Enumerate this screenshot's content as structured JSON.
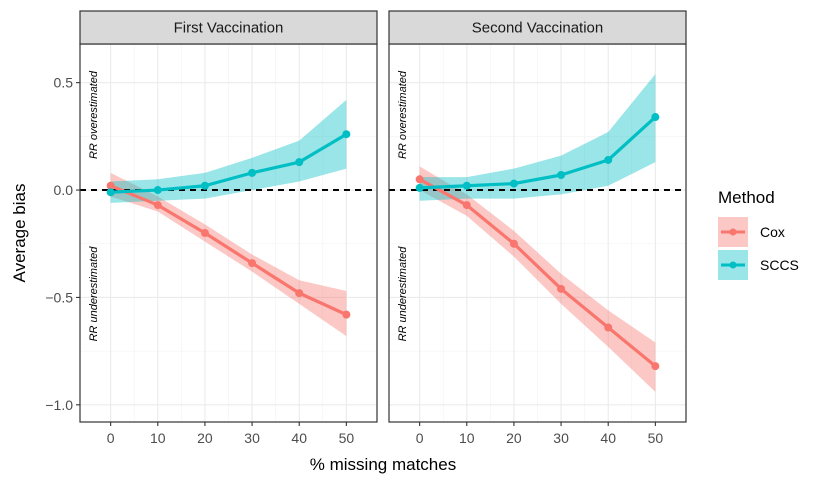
{
  "chart_data": {
    "type": "line",
    "xlabel": "% missing matches",
    "ylabel": "Average bias",
    "xlim": [
      -6.5,
      56.5
    ],
    "ylim": [
      -1.08,
      0.68
    ],
    "x_ticks": [
      0,
      10,
      20,
      30,
      40,
      50
    ],
    "x_tick_labels": [
      "0",
      "10",
      "20",
      "30",
      "40",
      "50"
    ],
    "y_ticks": [
      0.5,
      0.0,
      -0.5,
      -1.0
    ],
    "y_tick_labels": [
      "0.5",
      "0.0",
      "−0.5",
      "−1.0"
    ],
    "reference_line": {
      "y": 0,
      "style": "dashed",
      "color": "#000000"
    },
    "legend": {
      "title": "Method",
      "position": "right",
      "entries": [
        {
          "name": "Cox",
          "color": "#F8766D"
        },
        {
          "name": "SCCS",
          "color": "#00BFC4"
        }
      ]
    },
    "panels": [
      {
        "title": "First Vaccination",
        "annotations": {
          "upper": "RR overestimated",
          "lower": "RR underestimated"
        },
        "series": [
          {
            "name": "Cox",
            "color": "#F8766D",
            "x": [
              0,
              10,
              20,
              30,
              40,
              50
            ],
            "y": [
              0.02,
              -0.07,
              -0.2,
              -0.34,
              -0.48,
              -0.58
            ],
            "lower": [
              -0.03,
              -0.1,
              -0.24,
              -0.38,
              -0.53,
              -0.68
            ],
            "upper": [
              0.08,
              -0.03,
              -0.16,
              -0.3,
              -0.42,
              -0.47
            ]
          },
          {
            "name": "SCCS",
            "color": "#00BFC4",
            "x": [
              0,
              10,
              20,
              30,
              40,
              50
            ],
            "y": [
              -0.01,
              0.0,
              0.02,
              0.08,
              0.13,
              0.26
            ],
            "lower": [
              -0.06,
              -0.05,
              -0.04,
              0.0,
              0.04,
              0.1
            ],
            "upper": [
              0.04,
              0.05,
              0.08,
              0.15,
              0.23,
              0.42
            ]
          }
        ]
      },
      {
        "title": "Second Vaccination",
        "annotations": {
          "upper": "RR overestimated",
          "lower": "RR underestimated"
        },
        "series": [
          {
            "name": "Cox",
            "color": "#F8766D",
            "x": [
              0,
              10,
              20,
              30,
              40,
              50
            ],
            "y": [
              0.05,
              -0.07,
              -0.25,
              -0.46,
              -0.64,
              -0.82
            ],
            "lower": [
              0.0,
              -0.12,
              -0.31,
              -0.53,
              -0.73,
              -0.94
            ],
            "upper": [
              0.11,
              -0.02,
              -0.19,
              -0.39,
              -0.56,
              -0.71
            ]
          },
          {
            "name": "SCCS",
            "color": "#00BFC4",
            "x": [
              0,
              10,
              20,
              30,
              40,
              50
            ],
            "y": [
              0.01,
              0.02,
              0.03,
              0.07,
              0.14,
              0.34
            ],
            "lower": [
              -0.05,
              -0.04,
              -0.04,
              -0.02,
              0.02,
              0.13
            ],
            "upper": [
              0.06,
              0.06,
              0.1,
              0.16,
              0.27,
              0.54
            ]
          }
        ]
      }
    ]
  }
}
